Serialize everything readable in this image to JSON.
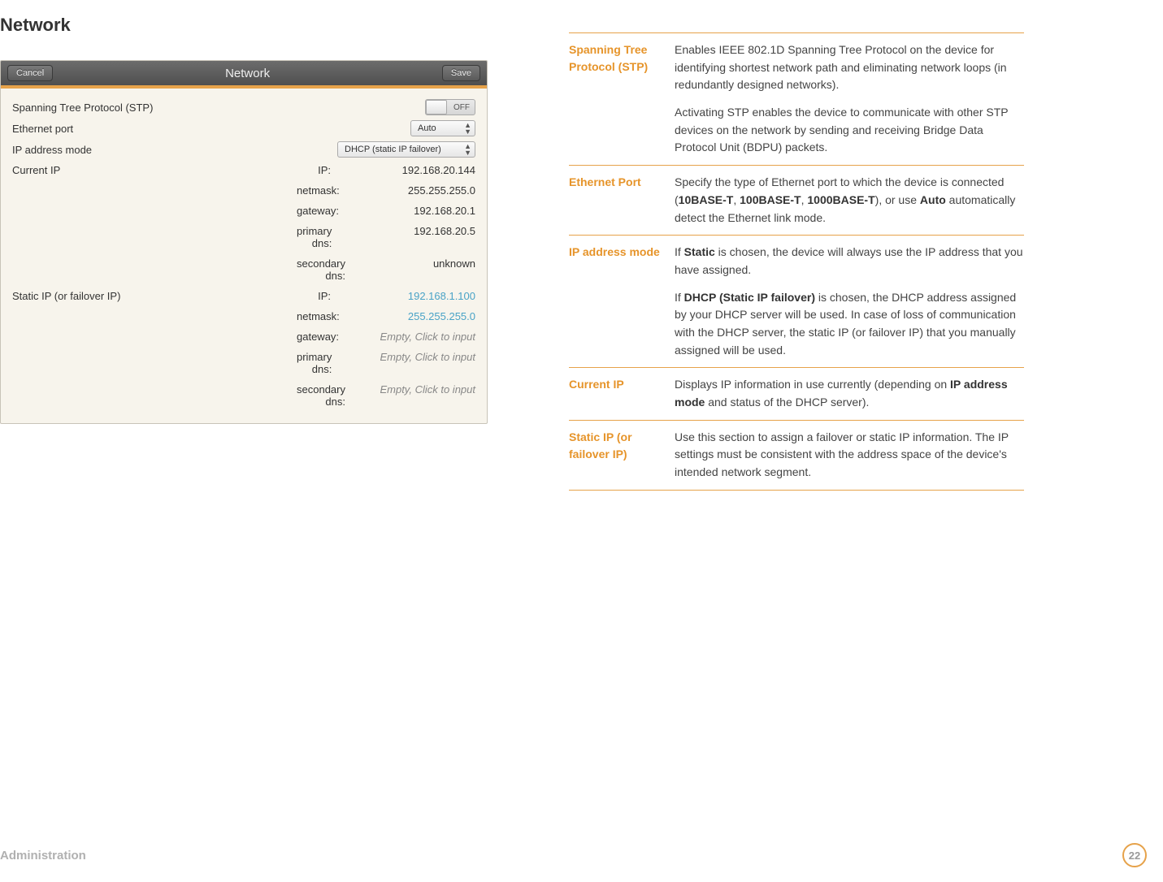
{
  "page_title": "Network",
  "footer": {
    "section": "Administration",
    "page": "22"
  },
  "panel": {
    "title": "Network",
    "cancel": "Cancel",
    "save": "Save",
    "stp": {
      "label": "Spanning Tree Protocol (STP)",
      "state": "OFF"
    },
    "ethernet": {
      "label": "Ethernet port",
      "value": "Auto"
    },
    "ipmode": {
      "label": "IP address mode",
      "value": "DHCP (static IP failover)"
    },
    "current_ip": {
      "label": "Current IP",
      "rows": [
        {
          "k": "IP:",
          "v": "192.168.20.144"
        },
        {
          "k": "netmask:",
          "v": "255.255.255.0"
        },
        {
          "k": "gateway:",
          "v": "192.168.20.1"
        },
        {
          "k": "primary dns:",
          "v": "192.168.20.5"
        },
        {
          "k": "secondary dns:",
          "v": "unknown"
        }
      ]
    },
    "static_ip": {
      "label": "Static IP (or failover IP)",
      "rows": [
        {
          "k": "IP:",
          "v": "192.168.1.100",
          "link": true
        },
        {
          "k": "netmask:",
          "v": "255.255.255.0",
          "link": true
        },
        {
          "k": "gateway:",
          "v": "Empty, Click to input",
          "placeholder": true
        },
        {
          "k": "primary dns:",
          "v": "Empty, Click to input",
          "placeholder": true
        },
        {
          "k": "secondary dns:",
          "v": "Empty, Click to input",
          "placeholder": true
        }
      ]
    }
  },
  "defs": [
    {
      "term": "Spanning Tree Protocol (STP)",
      "paras": [
        [
          {
            "t": "Enables IEEE 802.1D Spanning Tree Protocol on the device for identifying shortest network path and eliminating network loops (in redundantly designed networks)."
          }
        ],
        [
          {
            "t": "Activating STP enables the device to communicate with other STP devices on the network by sending and receiving Bridge Data Protocol Unit (BDPU) packets."
          }
        ]
      ]
    },
    {
      "term": "Ethernet Port",
      "paras": [
        [
          {
            "t": "Specify the type of Ethernet port to which the device is connected ("
          },
          {
            "t": "10BASE-T",
            "b": true
          },
          {
            "t": ", "
          },
          {
            "t": "100BASE-T",
            "b": true
          },
          {
            "t": ", "
          },
          {
            "t": "1000BASE-T",
            "b": true
          },
          {
            "t": "), or use "
          },
          {
            "t": "Auto",
            "b": true
          },
          {
            "t": " automatically detect the Ethernet link mode."
          }
        ]
      ]
    },
    {
      "term": "IP address mode",
      "paras": [
        [
          {
            "t": "If "
          },
          {
            "t": "Static",
            "b": true
          },
          {
            "t": " is chosen, the device will always use the IP address that you have assigned."
          }
        ],
        [
          {
            "t": "If "
          },
          {
            "t": "DHCP (Static IP failover)",
            "b": true
          },
          {
            "t": " is chosen, the DHCP address assigned by your DHCP server will be used. In case of loss of communication with the DHCP server, the static IP (or failover IP) that you manually assigned will be used."
          }
        ]
      ]
    },
    {
      "term": "Current IP",
      "paras": [
        [
          {
            "t": "Displays IP information in use currently (depending on "
          },
          {
            "t": "IP address mode",
            "b": true
          },
          {
            "t": " and status of the DHCP server)."
          }
        ]
      ]
    },
    {
      "term": "Static IP (or failover IP)",
      "paras": [
        [
          {
            "t": "Use this section to assign a failover or static IP information. The IP settings must be consistent with the address space of the device's intended network segment."
          }
        ]
      ]
    }
  ]
}
